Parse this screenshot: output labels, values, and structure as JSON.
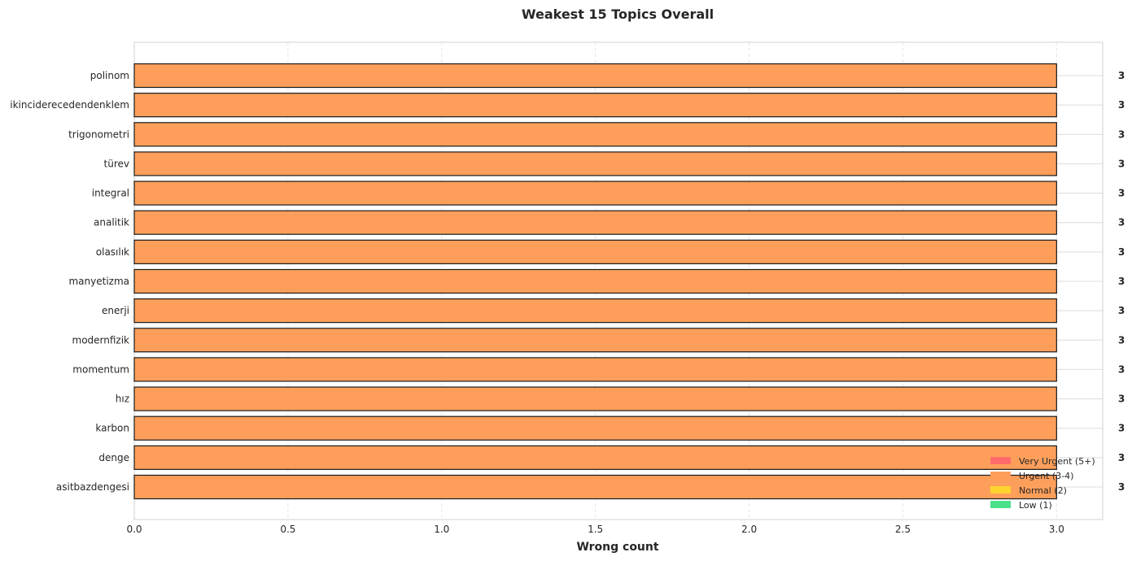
{
  "chart_data": {
    "type": "bar",
    "orientation": "horizontal",
    "title": "Weakest 15 Topics Overall",
    "xlabel": "Wrong count",
    "ylabel": "",
    "categories": [
      "polinom",
      "ikinciderecedendenklem",
      "trigonometri",
      "türev",
      "integral",
      "analitik",
      "olasılık",
      "manyetizma",
      "enerji",
      "modernfizik",
      "momentum",
      "hız",
      "karbon",
      "denge",
      "asitbazdengesi"
    ],
    "values": [
      3,
      3,
      3,
      3,
      3,
      3,
      3,
      3,
      3,
      3,
      3,
      3,
      3,
      3,
      3
    ],
    "value_labels": [
      "3",
      "3",
      "3",
      "3",
      "3",
      "3",
      "3",
      "3",
      "3",
      "3",
      "3",
      "3",
      "3",
      "3",
      "3"
    ],
    "bar_color": "#fd9f5b",
    "xlim": [
      0,
      3.15
    ],
    "xticks": [
      "0.0",
      "0.5",
      "1.0",
      "1.5",
      "2.0",
      "2.5",
      "3.0"
    ],
    "grid": true,
    "legend_position": "lower-right",
    "legend": [
      {
        "label": "Very Urgent (5+)",
        "color": "#ff6b6b"
      },
      {
        "label": "Urgent (3-4)",
        "color": "#fd9f5b"
      },
      {
        "label": "Normal (2)",
        "color": "#fed330"
      },
      {
        "label": "Low (1)",
        "color": "#4be08a"
      }
    ]
  }
}
